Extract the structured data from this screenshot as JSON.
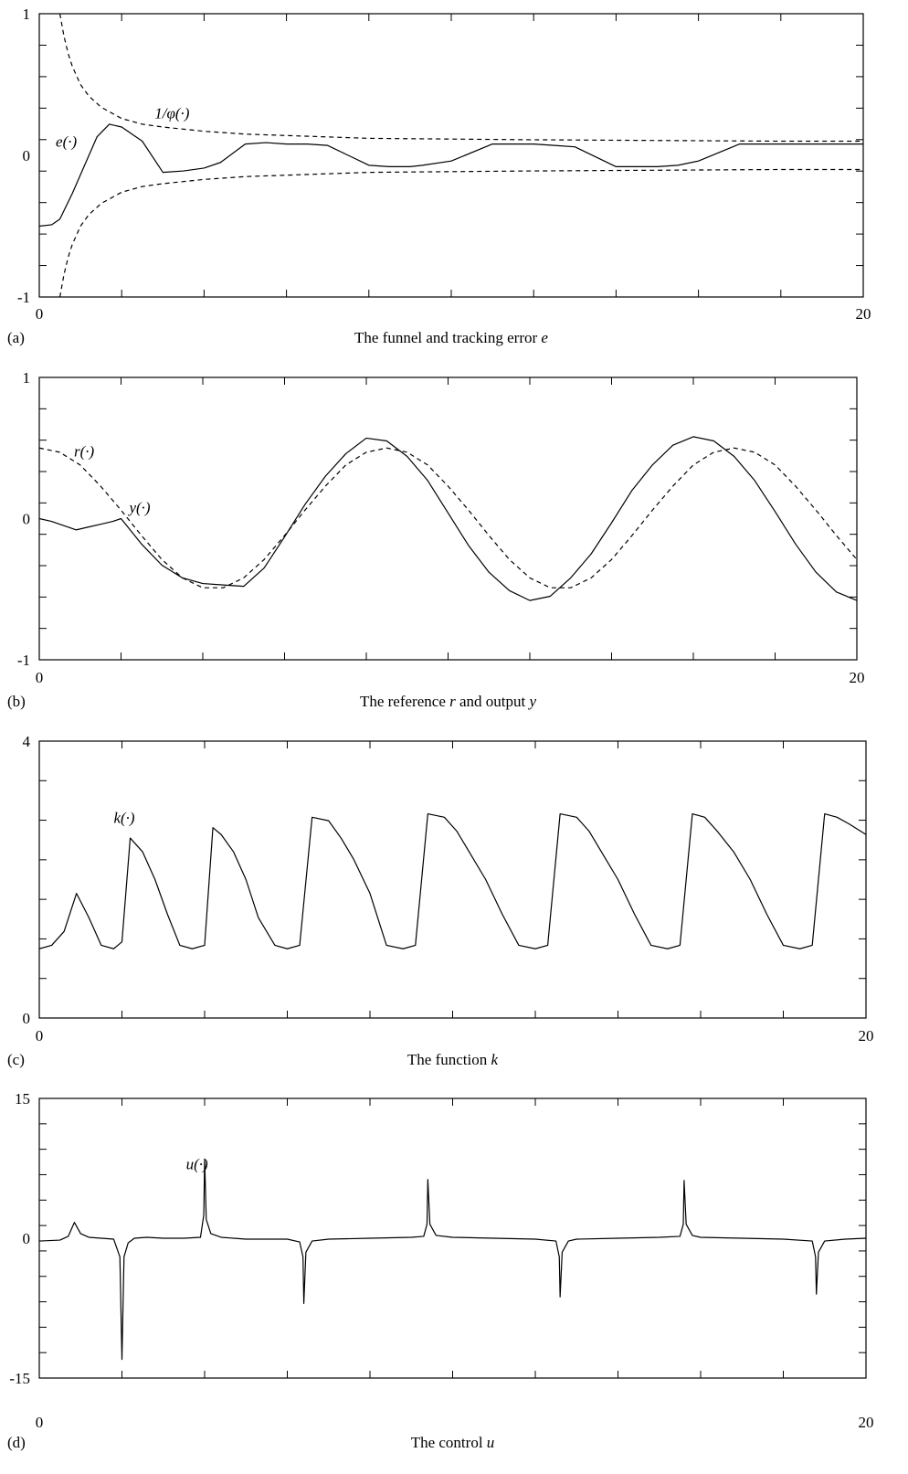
{
  "chart_data": [
    {
      "id": "a",
      "type": "line",
      "panel_letter": "(a)",
      "caption_text": "The funnel and tracking error ",
      "caption_var": "e",
      "xlim": [
        0,
        20
      ],
      "ylim": [
        -1,
        1
      ],
      "x_tick_labels": [
        "0",
        "20"
      ],
      "y_tick_labels": [
        "1",
        "0",
        "-1"
      ],
      "series": [
        {
          "name": "e(·)",
          "style": "solid",
          "x": [
            0,
            0.3,
            0.5,
            0.8,
            1.1,
            1.4,
            1.7,
            2.0,
            2.5,
            3.0,
            3.5,
            4.0,
            4.4,
            5.0,
            5.5,
            6.0,
            6.5,
            7.0,
            8.0,
            8.5,
            9.0,
            9.3,
            10.0,
            11.0,
            11.5,
            12.0,
            12.5,
            13.0,
            14.0,
            14.5,
            15.0,
            15.5,
            16.0,
            17.0,
            17.5,
            18.0,
            18.5,
            19.0,
            20.0
          ],
          "y": [
            -0.5,
            -0.49,
            -0.45,
            -0.27,
            -0.07,
            0.13,
            0.22,
            0.2,
            0.1,
            -0.12,
            -0.11,
            -0.09,
            -0.05,
            0.08,
            0.09,
            0.08,
            0.08,
            0.07,
            -0.07,
            -0.08,
            -0.08,
            -0.07,
            -0.04,
            0.08,
            0.08,
            0.08,
            0.07,
            0.06,
            -0.08,
            -0.08,
            -0.08,
            -0.07,
            -0.04,
            0.08,
            0.08,
            0.08,
            0.08,
            0.08,
            0.08
          ]
        },
        {
          "name": "1/φ(·)",
          "style": "dashed",
          "x": [
            0.5,
            0.6,
            0.7,
            0.8,
            1.0,
            1.2,
            1.5,
            2.0,
            2.5,
            3.0,
            4.0,
            5.0,
            6.0,
            8.0,
            10.0,
            12.0,
            15.0,
            18.0,
            20.0
          ],
          "y": [
            1.0,
            0.84,
            0.72,
            0.63,
            0.5,
            0.42,
            0.34,
            0.26,
            0.22,
            0.2,
            0.17,
            0.15,
            0.14,
            0.12,
            0.115,
            0.11,
            0.105,
            0.1,
            0.1
          ]
        },
        {
          "name": "",
          "style": "dashed",
          "x": [
            0.5,
            0.6,
            0.7,
            0.8,
            1.0,
            1.2,
            1.5,
            2.0,
            2.5,
            3.0,
            4.0,
            5.0,
            6.0,
            8.0,
            10.0,
            12.0,
            15.0,
            18.0,
            20.0
          ],
          "y": [
            -1.0,
            -0.84,
            -0.72,
            -0.63,
            -0.5,
            -0.42,
            -0.34,
            -0.26,
            -0.22,
            -0.2,
            -0.17,
            -0.15,
            -0.14,
            -0.12,
            -0.115,
            -0.11,
            -0.105,
            -0.1,
            -0.1
          ]
        }
      ],
      "annotations": [
        {
          "text": "e(·)",
          "x": 0.4,
          "y": 0.1
        },
        {
          "text": "1/φ(·)",
          "x": 2.8,
          "y": 0.3
        }
      ]
    },
    {
      "id": "b",
      "type": "line",
      "panel_letter": "(b)",
      "caption_text": "The reference ",
      "caption_var": "r",
      "caption_mid": " and output ",
      "caption_var2": "y",
      "xlim": [
        0,
        20
      ],
      "ylim": [
        -1,
        1
      ],
      "x_tick_labels": [
        "0",
        "20"
      ],
      "y_tick_labels": [
        "1",
        "0",
        "-1"
      ],
      "series": [
        {
          "name": "r(·)",
          "style": "dashed",
          "x": [
            0,
            0.5,
            1.0,
            1.5,
            2.0,
            2.5,
            3.0,
            3.5,
            4.0,
            4.5,
            5.0,
            5.5,
            6.0,
            6.5,
            7.0,
            7.5,
            8.0,
            8.5,
            9.0,
            9.5,
            10.0,
            10.5,
            11.0,
            11.5,
            12.0,
            12.5,
            13.0,
            13.5,
            14.0,
            14.5,
            15.0,
            15.5,
            16.0,
            16.5,
            17.0,
            17.5,
            18.0,
            18.5,
            19.0,
            19.5,
            20.0
          ],
          "y": [
            0.5,
            0.47,
            0.38,
            0.23,
            0.06,
            -0.12,
            -0.29,
            -0.42,
            -0.49,
            -0.49,
            -0.42,
            -0.29,
            -0.12,
            0.06,
            0.23,
            0.38,
            0.47,
            0.5,
            0.47,
            0.38,
            0.23,
            0.06,
            -0.12,
            -0.29,
            -0.42,
            -0.49,
            -0.49,
            -0.42,
            -0.29,
            -0.12,
            0.06,
            0.23,
            0.38,
            0.47,
            0.5,
            0.47,
            0.38,
            0.23,
            0.06,
            -0.12,
            -0.29
          ]
        },
        {
          "name": "y(·)",
          "style": "solid",
          "x": [
            0,
            0.3,
            0.6,
            0.9,
            1.2,
            1.5,
            1.8,
            2.0,
            2.5,
            3.0,
            3.5,
            4.0,
            4.5,
            5.0,
            5.5,
            6.0,
            6.5,
            7.0,
            7.5,
            8.0,
            8.5,
            9.0,
            9.5,
            10.0,
            10.5,
            11.0,
            11.5,
            12.0,
            12.5,
            13.0,
            13.5,
            14.0,
            14.5,
            15.0,
            15.5,
            16.0,
            16.5,
            17.0,
            17.5,
            18.0,
            18.5,
            19.0,
            19.5,
            20.0
          ],
          "y": [
            0,
            -0.02,
            -0.05,
            -0.08,
            -0.06,
            -0.04,
            -0.02,
            0.0,
            -0.18,
            -0.33,
            -0.42,
            -0.46,
            -0.47,
            -0.48,
            -0.35,
            -0.13,
            0.1,
            0.3,
            0.46,
            0.57,
            0.55,
            0.44,
            0.27,
            0.04,
            -0.19,
            -0.38,
            -0.51,
            -0.58,
            -0.55,
            -0.42,
            -0.25,
            -0.03,
            0.2,
            0.38,
            0.52,
            0.58,
            0.55,
            0.44,
            0.27,
            0.05,
            -0.18,
            -0.38,
            -0.52,
            -0.58
          ]
        }
      ],
      "annotations": [
        {
          "text": "r(·)",
          "x": 0.85,
          "y": 0.48
        },
        {
          "text": "y(·)",
          "x": 2.2,
          "y": 0.08
        }
      ]
    },
    {
      "id": "c",
      "type": "line",
      "panel_letter": "(c)",
      "caption_text": "The function ",
      "caption_var": "k",
      "xlim": [
        0,
        20
      ],
      "ylim": [
        0,
        4
      ],
      "x_tick_labels": [
        "0",
        "20"
      ],
      "y_tick_labels": [
        "4",
        "0"
      ],
      "series": [
        {
          "name": "k(·)",
          "style": "solid",
          "x": [
            0,
            0.3,
            0.6,
            0.9,
            1.2,
            1.5,
            1.8,
            2.0,
            2.2,
            2.5,
            2.8,
            3.1,
            3.4,
            3.7,
            4.0,
            4.2,
            4.4,
            4.7,
            5.0,
            5.3,
            5.7,
            6.0,
            6.3,
            6.6,
            7.0,
            7.3,
            7.6,
            8.0,
            8.4,
            8.8,
            9.1,
            9.4,
            9.8,
            10.1,
            10.4,
            10.8,
            11.2,
            11.6,
            12.0,
            12.3,
            12.6,
            13.0,
            13.3,
            13.6,
            14.0,
            14.4,
            14.8,
            15.2,
            15.5,
            15.8,
            16.1,
            16.4,
            16.8,
            17.2,
            17.6,
            18.0,
            18.4,
            18.7,
            19.0,
            19.3,
            19.6,
            20.0
          ],
          "y": [
            1.0,
            1.05,
            1.25,
            1.8,
            1.45,
            1.05,
            1.0,
            1.1,
            2.6,
            2.4,
            2.0,
            1.5,
            1.05,
            1.0,
            1.05,
            2.75,
            2.65,
            2.4,
            2.0,
            1.45,
            1.05,
            1.0,
            1.05,
            2.9,
            2.85,
            2.6,
            2.3,
            1.8,
            1.05,
            1.0,
            1.05,
            2.95,
            2.9,
            2.7,
            2.4,
            2.0,
            1.5,
            1.05,
            1.0,
            1.05,
            2.95,
            2.9,
            2.7,
            2.4,
            2.0,
            1.5,
            1.05,
            1.0,
            1.05,
            2.95,
            2.9,
            2.7,
            2.4,
            2.0,
            1.5,
            1.05,
            1.0,
            1.05,
            2.95,
            2.9,
            2.8,
            2.65
          ]
        }
      ],
      "annotations": [
        {
          "text": "k(·)",
          "x": 1.8,
          "y": 2.9
        }
      ]
    },
    {
      "id": "d",
      "type": "line",
      "panel_letter": "(d)",
      "caption_text": "The control ",
      "caption_var": "u",
      "xlim": [
        0,
        20
      ],
      "ylim": [
        -15,
        15
      ],
      "x_tick_labels": [
        "0",
        "20"
      ],
      "y_tick_labels": [
        "15",
        "0",
        "-15"
      ],
      "series": [
        {
          "name": "u(·)",
          "style": "solid",
          "x": [
            0,
            0.5,
            0.7,
            0.85,
            1.0,
            1.2,
            1.5,
            1.8,
            1.95,
            2.0,
            2.05,
            2.15,
            2.3,
            2.6,
            3.0,
            3.5,
            3.9,
            3.98,
            4.0,
            4.04,
            4.15,
            4.4,
            5.0,
            6.0,
            6.3,
            6.38,
            6.4,
            6.45,
            6.6,
            7.0,
            8.0,
            9.0,
            9.3,
            9.38,
            9.4,
            9.45,
            9.6,
            10.0,
            11.0,
            12.0,
            12.5,
            12.58,
            12.6,
            12.65,
            12.8,
            13.0,
            14.0,
            15.0,
            15.5,
            15.58,
            15.6,
            15.65,
            15.8,
            16.0,
            17.0,
            18.0,
            18.7,
            18.78,
            18.8,
            18.85,
            19.0,
            19.5,
            20.0
          ],
          "y": [
            -0.3,
            -0.2,
            0.2,
            1.7,
            0.5,
            0.1,
            0.0,
            -0.1,
            -2.0,
            -13.0,
            -2.0,
            -0.5,
            0.0,
            0.1,
            0.0,
            0.0,
            0.1,
            2.5,
            8.5,
            2.0,
            0.5,
            0.1,
            -0.1,
            -0.1,
            -0.4,
            -2.0,
            -7.0,
            -1.5,
            -0.3,
            -0.1,
            0.0,
            0.1,
            0.2,
            1.5,
            6.3,
            1.5,
            0.3,
            0.1,
            0.0,
            -0.1,
            -0.3,
            -2.0,
            -6.3,
            -1.5,
            -0.3,
            -0.1,
            0.0,
            0.1,
            0.2,
            1.5,
            6.2,
            1.5,
            0.3,
            0.1,
            0.0,
            -0.1,
            -0.3,
            -2.0,
            -6.0,
            -1.5,
            -0.3,
            -0.1,
            0.0
          ]
        }
      ],
      "annotations": [
        {
          "text": "u(·)",
          "x": 3.55,
          "y": 8.0
        }
      ]
    }
  ]
}
